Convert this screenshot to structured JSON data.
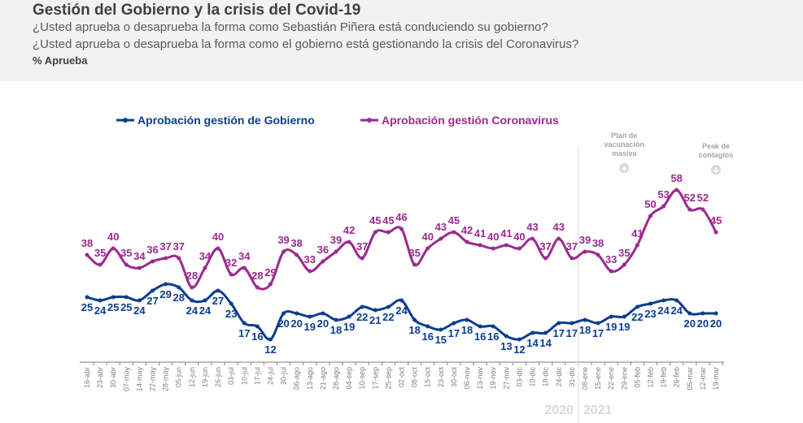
{
  "header": {
    "title": "Gestión del Gobierno y la crisis del Covid-19",
    "question1": "¿Usted aprueba o desaprueba la forma como Sebastián Piñera está conduciendo su gobierno?",
    "question2": "¿Usted aprueba o desaprueba la forma como el gobierno está gestionando la crisis del Coronavirus?",
    "unit": "% Aprueba"
  },
  "chart_data": {
    "type": "line",
    "x": [
      "16-abr",
      "23-abr",
      "30-abr",
      "07-may",
      "14-may",
      "22-may",
      "28-may",
      "05-jun",
      "12-jun",
      "19-jun",
      "26-jun",
      "03-jul",
      "10-jul",
      "17-jul",
      "24-jul",
      "30-jul",
      "06-ago",
      "13-ago",
      "21-ago",
      "28-ago",
      "04-sep",
      "10-sep",
      "17-sep",
      "25-sep",
      "02-oct",
      "08-oct",
      "15-oct",
      "23-oct",
      "30-oct",
      "06-nov",
      "13-nov",
      "19-nov",
      "27-nov",
      "03-dic",
      "10-dic",
      "18-dic",
      "24-dic",
      "31-dic",
      "08-ene",
      "15-ene",
      "22-ene",
      "29-ene",
      "05-feb",
      "12-feb",
      "19-feb",
      "26-feb",
      "05-mar",
      "12-mar",
      "19-mar"
    ],
    "series": [
      {
        "name": "Aprobación gestión de Gobierno",
        "color": "#0b3d91",
        "values": [
          25,
          24,
          25,
          25,
          24,
          27,
          29,
          28,
          24,
          24,
          27,
          23,
          17,
          16,
          12,
          20,
          20,
          19,
          20,
          18,
          19,
          22,
          21,
          22,
          24,
          18,
          16,
          15,
          17,
          18,
          16,
          16,
          13,
          12,
          14,
          14,
          17,
          17,
          18,
          17,
          19,
          19,
          22,
          23,
          24,
          24,
          20,
          20,
          20
        ]
      },
      {
        "name": "Aprobación gestión Coronavirus",
        "color": "#9b2a8f",
        "values": [
          38,
          35,
          40,
          35,
          34,
          36,
          37,
          37,
          28,
          34,
          40,
          32,
          34,
          28,
          29,
          39,
          38,
          33,
          36,
          39,
          42,
          37,
          45,
          45,
          46,
          35,
          40,
          43,
          45,
          42,
          41,
          40,
          41,
          40,
          43,
          37,
          43,
          37,
          39,
          38,
          33,
          35,
          41,
          50,
          53,
          58,
          52,
          52,
          45
        ]
      }
    ],
    "year_labels": [
      "2020",
      "2021"
    ],
    "annotations": [
      {
        "text": "Plan de vacunación masiva",
        "at": "29-ene"
      },
      {
        "text": "Peak de contagios",
        "at": "19-mar"
      }
    ],
    "legend": "top",
    "grid": false
  }
}
